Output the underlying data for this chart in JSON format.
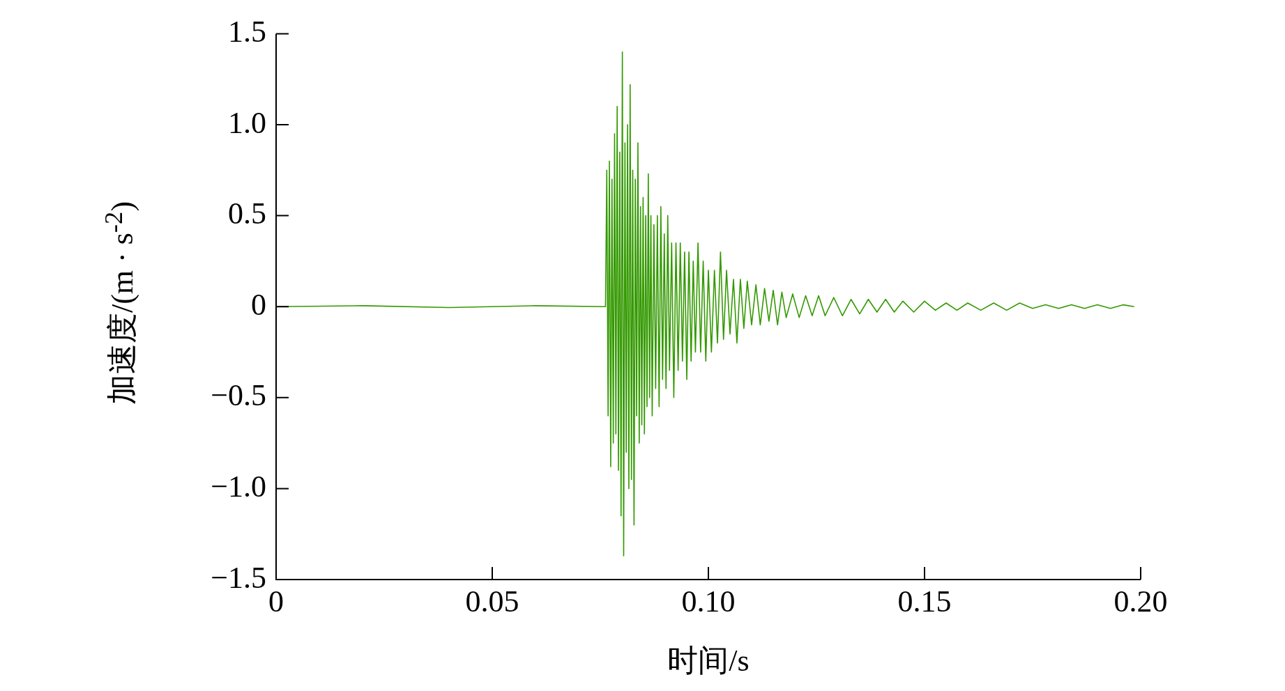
{
  "chart_data": {
    "type": "line",
    "xlabel": "时间/s",
    "ylabel": "加速度/(m · s$^{-2}$)",
    "xlim": [
      0,
      0.2
    ],
    "xticks": [
      0,
      0.05,
      {
        "value": 0.1,
        "label": "0.10"
      },
      0.15,
      {
        "value": 0.2,
        "label": "0.20"
      }
    ],
    "ylim": [
      -1.5,
      1.5
    ],
    "yticks": [
      {
        "value": -1.5,
        "label": "−1.5"
      },
      {
        "value": -1,
        "label": "−1.0"
      },
      {
        "value": -0.5,
        "label": "−0.5"
      },
      0,
      0.5,
      {
        "value": 1,
        "label": "1.0"
      },
      1.5
    ],
    "grid": false,
    "legend": false,
    "marker": "none",
    "line_style": "solid",
    "series": [
      {
        "color": "#339900",
        "x": [
          0,
          0.02,
          0.04,
          0.06,
          0.0762,
          0.0765,
          0.0768,
          0.0771,
          0.0774,
          0.0777,
          0.078,
          0.0783,
          0.0786,
          0.0789,
          0.0792,
          0.0795,
          0.0798,
          0.0801,
          0.0804,
          0.0807,
          0.081,
          0.0813,
          0.0816,
          0.0819,
          0.0822,
          0.0825,
          0.0828,
          0.0831,
          0.0834,
          0.0837,
          0.084,
          0.0843,
          0.0846,
          0.0849,
          0.0852,
          0.0855,
          0.0858,
          0.0861,
          0.0864,
          0.0867,
          0.087,
          0.0874,
          0.0878,
          0.0882,
          0.0886,
          0.089,
          0.0894,
          0.0898,
          0.0902,
          0.0906,
          0.091,
          0.0915,
          0.092,
          0.0925,
          0.093,
          0.0935,
          0.094,
          0.0945,
          0.095,
          0.0955,
          0.096,
          0.0965,
          0.097,
          0.0976,
          0.0982,
          0.0988,
          0.0994,
          0.1,
          0.1007,
          0.1014,
          0.1021,
          0.1028,
          0.1035,
          0.1042,
          0.105,
          0.1058,
          0.1066,
          0.1074,
          0.1082,
          0.109,
          0.11,
          0.111,
          0.112,
          0.113,
          0.114,
          0.115,
          0.116,
          0.117,
          0.118,
          0.1195,
          0.121,
          0.1225,
          0.124,
          0.1255,
          0.127,
          0.129,
          0.131,
          0.133,
          0.135,
          0.137,
          0.139,
          0.141,
          0.143,
          0.145,
          0.1475,
          0.15,
          0.1525,
          0.155,
          0.1575,
          0.16,
          0.163,
          0.166,
          0.169,
          0.172,
          0.175,
          0.178,
          0.181,
          0.184,
          0.187,
          0.19,
          0.193,
          0.196,
          0.1985
        ],
        "values": [
          0,
          0.005,
          -0.005,
          0.005,
          0,
          0.75,
          -0.6,
          0.8,
          -0.88,
          0.7,
          -0.75,
          0.95,
          -0.7,
          1.1,
          -0.9,
          0.85,
          -1.15,
          1.4,
          -1.37,
          0.9,
          -0.8,
          1.0,
          -1.0,
          1.22,
          -0.95,
          0.75,
          -1.2,
          0.7,
          -0.6,
          0.9,
          -0.75,
          0.55,
          -0.65,
          0.6,
          -0.7,
          0.5,
          -0.55,
          0.73,
          -0.5,
          0.5,
          -0.6,
          0.45,
          -0.45,
          0.5,
          -0.55,
          0.55,
          -0.4,
          0.4,
          -0.45,
          0.5,
          -0.35,
          0.35,
          -0.5,
          0.35,
          -0.35,
          0.35,
          -0.3,
          0.3,
          -0.4,
          0.3,
          -0.3,
          0.25,
          -0.25,
          0.35,
          -0.25,
          0.25,
          -0.3,
          0.2,
          -0.25,
          0.2,
          -0.2,
          0.3,
          -0.18,
          0.2,
          -0.15,
          0.15,
          -0.2,
          0.15,
          -0.12,
          0.14,
          -0.1,
          0.12,
          -0.1,
          0.1,
          -0.08,
          0.09,
          -0.1,
          0.08,
          -0.06,
          0.07,
          -0.06,
          0.06,
          -0.05,
          0.06,
          -0.05,
          0.05,
          -0.05,
          0.04,
          -0.04,
          0.04,
          -0.03,
          0.04,
          -0.03,
          0.03,
          -0.03,
          0.03,
          -0.02,
          0.02,
          -0.02,
          0.02,
          -0.02,
          0.02,
          -0.02,
          0.02,
          -0.01,
          0.01,
          -0.01,
          0.01,
          -0.01,
          0.01,
          -0.01,
          0.01,
          0
        ]
      }
    ]
  }
}
